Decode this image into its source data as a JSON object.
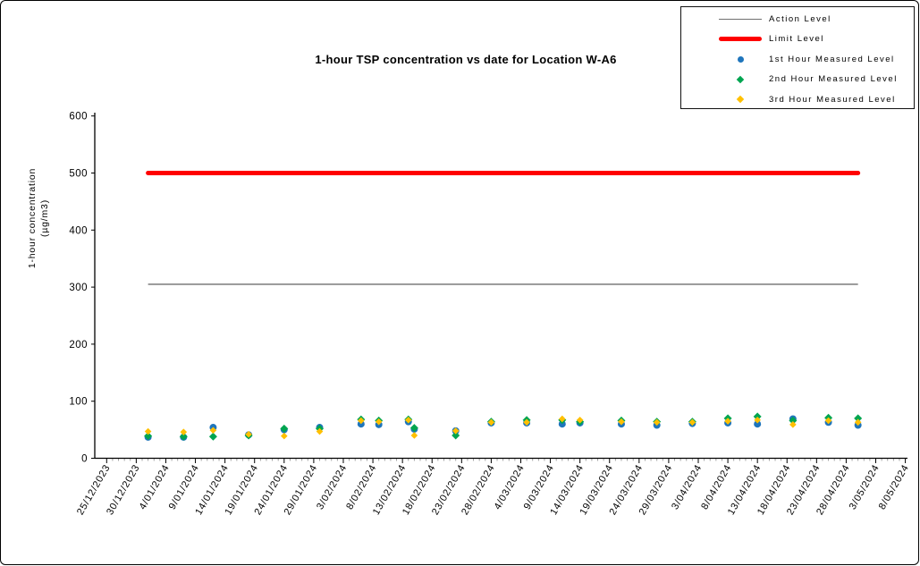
{
  "chart_data": {
    "type": "scatter",
    "title": "1-hour TSP concentration vs date for Location  W-A6",
    "ylabel_line1": "1-hour concentration",
    "ylabel_line2": "(µg/m3)",
    "ylim": [
      0,
      600
    ],
    "y_ticks": [
      0,
      100,
      200,
      300,
      400,
      500,
      600
    ],
    "x_axis_start": "25/12/2023",
    "x_axis_end": "8/05/2024",
    "x_tick_interval_days": 5,
    "x_tick_labels": [
      "25/12/2023",
      "30/12/2023",
      "4/01/2024",
      "9/01/2024",
      "14/01/2024",
      "19/01/2024",
      "24/01/2024",
      "29/01/2024",
      "3/02/2024",
      "8/02/2024",
      "13/02/2024",
      "18/02/2024",
      "23/02/2024",
      "28/02/2024",
      "4/03/2024",
      "9/03/2024",
      "14/03/2024",
      "19/03/2024",
      "24/03/2024",
      "29/03/2024",
      "3/04/2024",
      "8/04/2024",
      "13/04/2024",
      "18/04/2024",
      "23/04/2024",
      "28/04/2024",
      "3/05/2024",
      "8/05/2024"
    ],
    "grid": false,
    "legend_position": "top-right",
    "lines": {
      "action": {
        "label": "Action Level",
        "value": 305,
        "color": "#6F6F6F"
      },
      "limit": {
        "label": "Limit Level",
        "value": 500,
        "color": "#FF0000"
      }
    },
    "series": [
      {
        "name": "1st Hour Measured Level",
        "marker": "circle",
        "color": "#1F75BC"
      },
      {
        "name": "2nd Hour Measured Level",
        "marker": "diamond",
        "color": "#00A550"
      },
      {
        "name": "3rd Hour Measured Level",
        "marker": "diamond",
        "color": "#FFC000"
      }
    ],
    "points": [
      {
        "date": "1/01/2024",
        "values": [
          37,
          39,
          47
        ]
      },
      {
        "date": "7/01/2024",
        "values": [
          37,
          38,
          46
        ]
      },
      {
        "date": "12/01/2024",
        "values": [
          54,
          38,
          49
        ]
      },
      {
        "date": "18/01/2024",
        "values": [
          41,
          40,
          42
        ]
      },
      {
        "date": "24/01/2024",
        "values": [
          50,
          52,
          39
        ]
      },
      {
        "date": "30/01/2024",
        "values": [
          54,
          52,
          47
        ]
      },
      {
        "date": "6/02/2024",
        "values": [
          60,
          68,
          66
        ]
      },
      {
        "date": "9/02/2024",
        "values": [
          59,
          66,
          64
        ]
      },
      {
        "date": "14/02/2024",
        "values": [
          64,
          68,
          67
        ]
      },
      {
        "date": "15/02/2024",
        "values": [
          51,
          53,
          40
        ]
      },
      {
        "date": "22/02/2024",
        "values": [
          48,
          40,
          48
        ]
      },
      {
        "date": "28/02/2024",
        "values": [
          62,
          64,
          63
        ]
      },
      {
        "date": "5/03/2024",
        "values": [
          62,
          67,
          63
        ]
      },
      {
        "date": "11/03/2024",
        "values": [
          60,
          67,
          69
        ]
      },
      {
        "date": "14/03/2024",
        "values": [
          62,
          64,
          67
        ]
      },
      {
        "date": "21/03/2024",
        "values": [
          60,
          66,
          64
        ]
      },
      {
        "date": "27/03/2024",
        "values": [
          58,
          64,
          63
        ]
      },
      {
        "date": "2/04/2024",
        "values": [
          61,
          64,
          63
        ]
      },
      {
        "date": "8/04/2024",
        "values": [
          62,
          70,
          65
        ]
      },
      {
        "date": "13/04/2024",
        "values": [
          60,
          73,
          67
        ]
      },
      {
        "date": "19/04/2024",
        "values": [
          69,
          66,
          59
        ]
      },
      {
        "date": "25/04/2024",
        "values": [
          63,
          71,
          66
        ]
      },
      {
        "date": "30/04/2024",
        "values": [
          58,
          70,
          63
        ]
      }
    ]
  },
  "legend": {
    "entries": [
      "Action Level",
      "Limit Level",
      "1st Hour Measured Level",
      "2nd Hour Measured Level",
      "3rd Hour Measured Level"
    ]
  }
}
